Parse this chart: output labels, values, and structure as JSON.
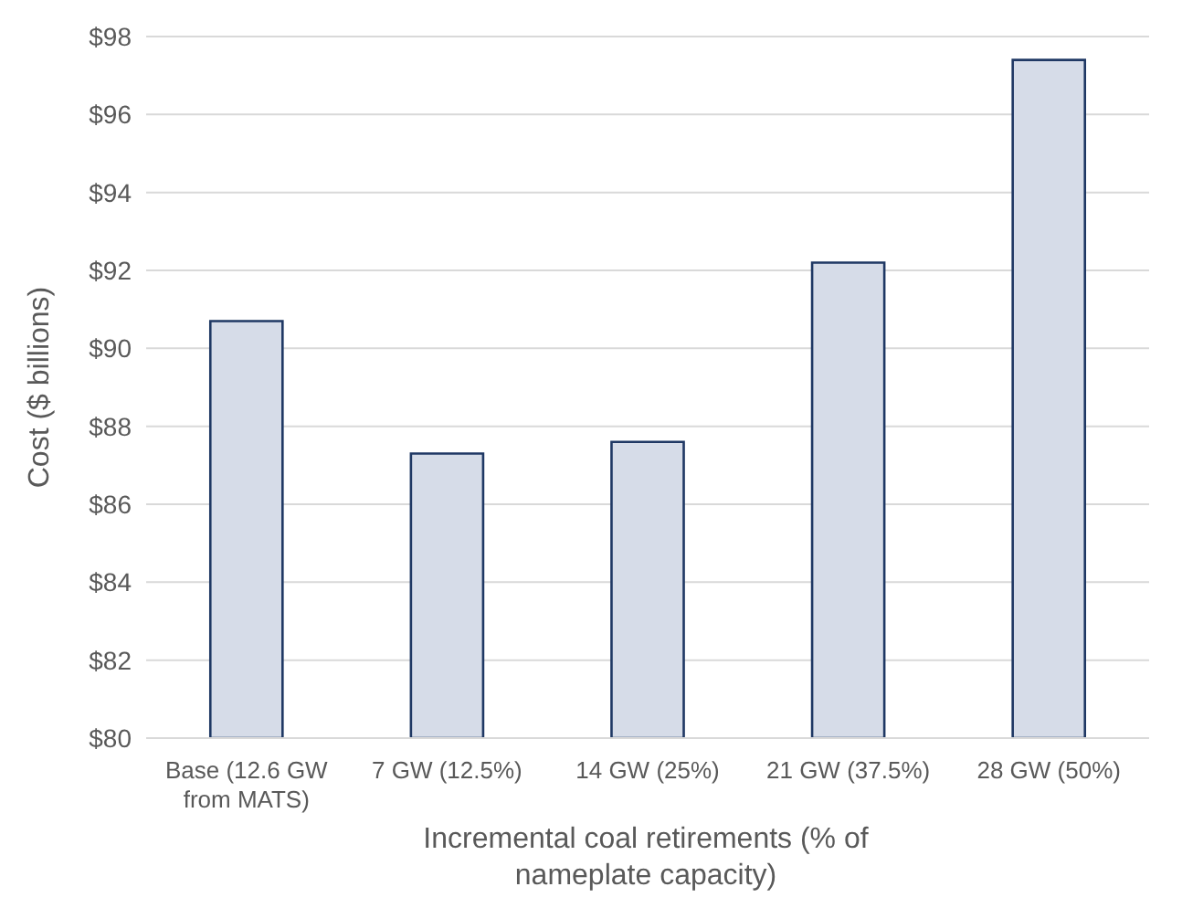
{
  "chart_data": {
    "type": "bar",
    "ylabel": "Cost ($ billions)",
    "xlabel": "Incremental coal retirements (% of nameplate capacity)",
    "categories": [
      "Base (12.6 GW from MATS)",
      "7 GW (12.5%)",
      "14 GW (25%)",
      "21 GW (37.5%)",
      "28 GW (50%)"
    ],
    "values": [
      90.7,
      87.3,
      87.6,
      92.2,
      97.4
    ],
    "color": "#d6dce8",
    "ylim": [
      80,
      98
    ],
    "yticks": [
      {
        "value": 80,
        "label": "$80"
      },
      {
        "value": 82,
        "label": "$82"
      },
      {
        "value": 84,
        "label": "$84"
      },
      {
        "value": 86,
        "label": "$86"
      },
      {
        "value": 88,
        "label": "$88"
      },
      {
        "value": 90,
        "label": "$90"
      },
      {
        "value": 92,
        "label": "$92"
      },
      {
        "value": 94,
        "label": "$94"
      },
      {
        "value": 96,
        "label": "$96"
      },
      {
        "value": 98,
        "label": "$98"
      }
    ],
    "grid": "y"
  }
}
